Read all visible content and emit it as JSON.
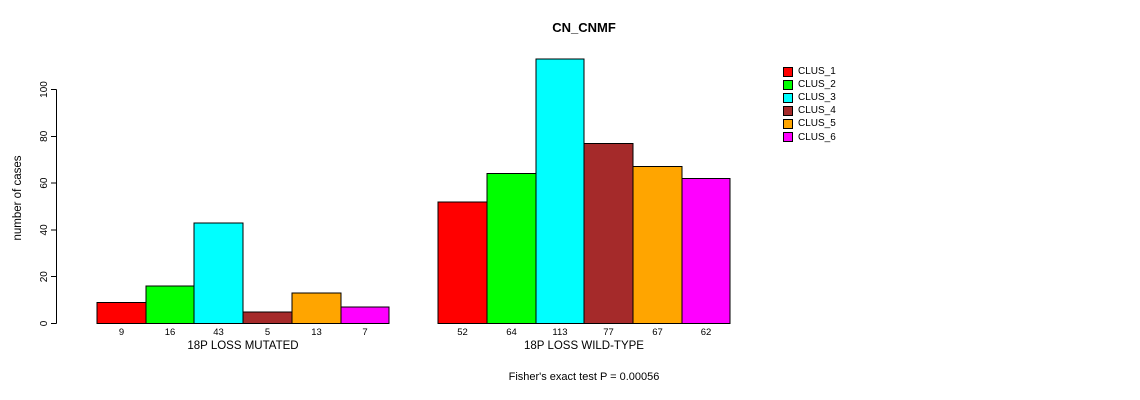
{
  "chart_data": {
    "type": "bar",
    "title": "CN_CNMF",
    "ylabel": "number of cases",
    "xlabel": "",
    "annotation": "Fisher's exact test P = 0.00056",
    "categories": [
      "18P LOSS MUTATED",
      "18P LOSS WILD-TYPE"
    ],
    "series": [
      {
        "name": "CLUS_1",
        "color": "#FF0000",
        "values": [
          9,
          52
        ]
      },
      {
        "name": "CLUS_2",
        "color": "#00FF00",
        "values": [
          16,
          64
        ]
      },
      {
        "name": "CLUS_3",
        "color": "#00FFFF",
        "values": [
          43,
          113
        ]
      },
      {
        "name": "CLUS_4",
        "color": "#A52A2A",
        "values": [
          5,
          77
        ]
      },
      {
        "name": "CLUS_5",
        "color": "#FFA500",
        "values": [
          13,
          67
        ]
      },
      {
        "name": "CLUS_6",
        "color": "#FF00FF",
        "values": [
          7,
          62
        ]
      }
    ],
    "bar_value_labels": [
      [
        "9",
        "16",
        "43",
        "5",
        "13",
        "7"
      ],
      [
        "52",
        "64",
        "113",
        "77",
        "67",
        "62"
      ]
    ],
    "yticks": [
      "0",
      "20",
      "40",
      "60",
      "80",
      "100"
    ],
    "ylim": [
      0,
      113
    ],
    "grid": false,
    "legend_position": "right",
    "bar_border_color": "#000000",
    "axis_color": "#000000"
  }
}
